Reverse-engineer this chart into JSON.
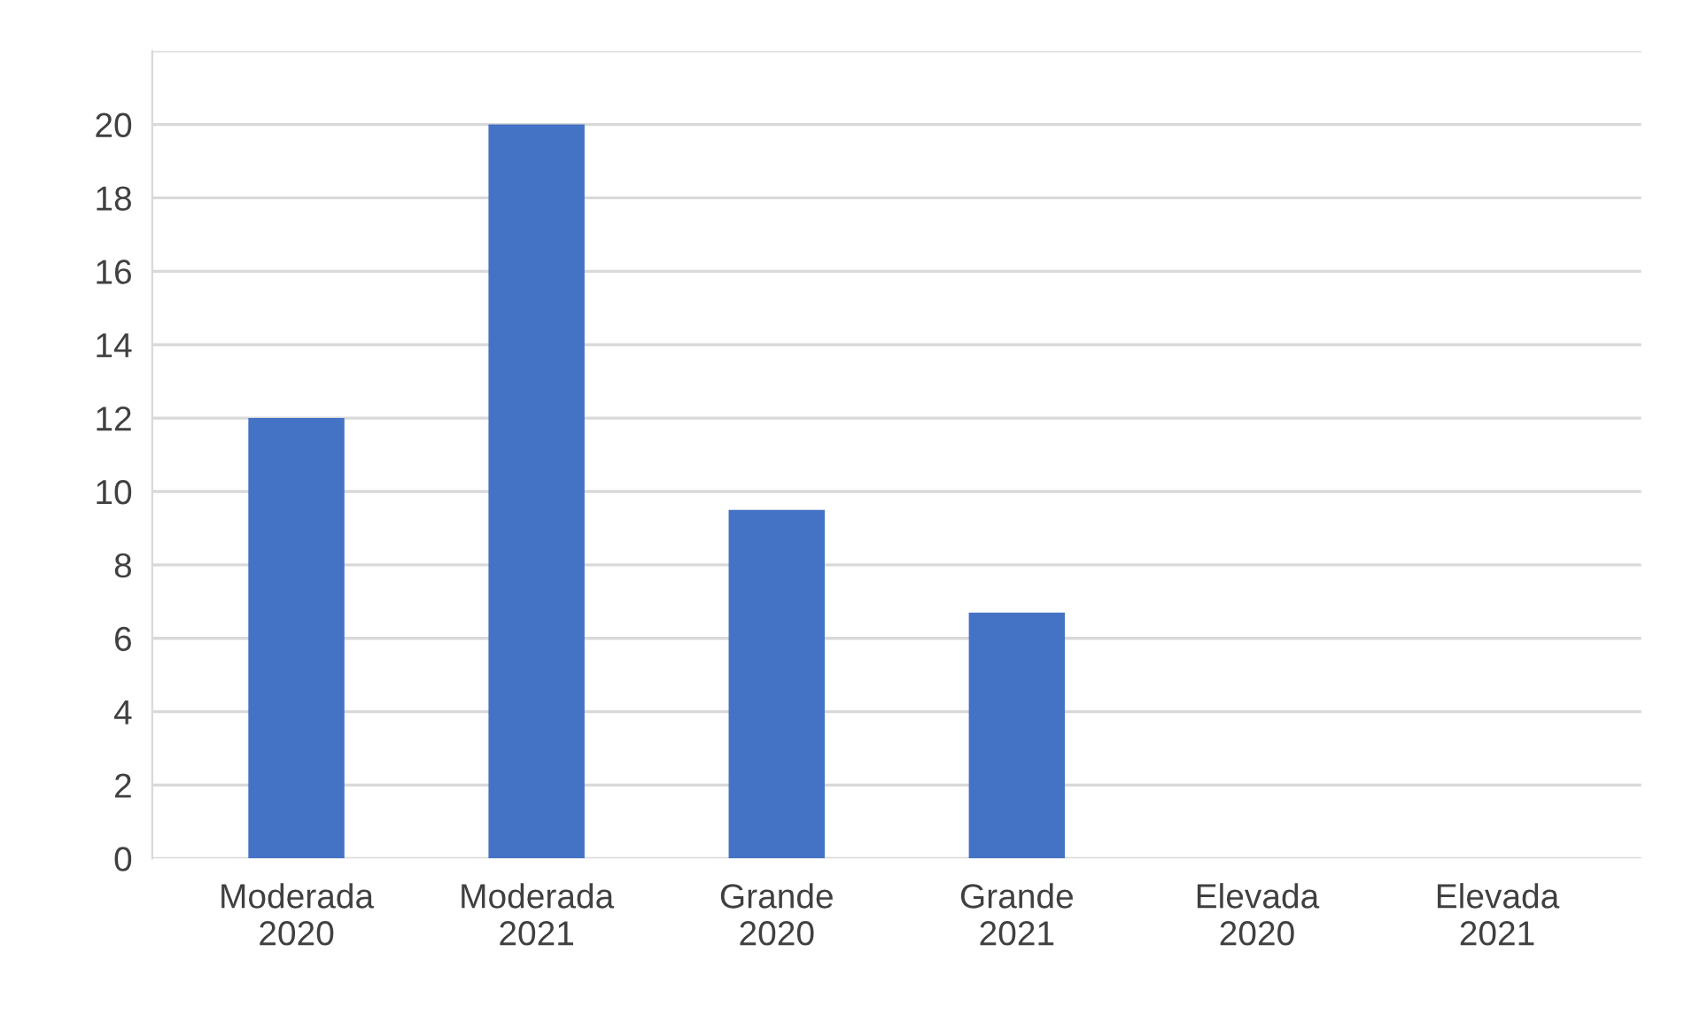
{
  "chart_data": {
    "type": "bar",
    "categories": [
      "Moderada\n2020",
      "Moderada\n2021",
      "Grande\n2020",
      "Grande\n2021",
      "Elevada\n2020",
      "Elevada\n2021"
    ],
    "values": [
      12,
      20,
      9.5,
      6.7,
      0,
      0
    ],
    "color": "#4472c4",
    "ylim": [
      0,
      22
    ],
    "yticks": [
      0,
      2,
      4,
      6,
      8,
      10,
      12,
      14,
      16,
      18,
      20,
      {
        "value": 22,
        "label": null
      }
    ],
    "grid": "y"
  }
}
